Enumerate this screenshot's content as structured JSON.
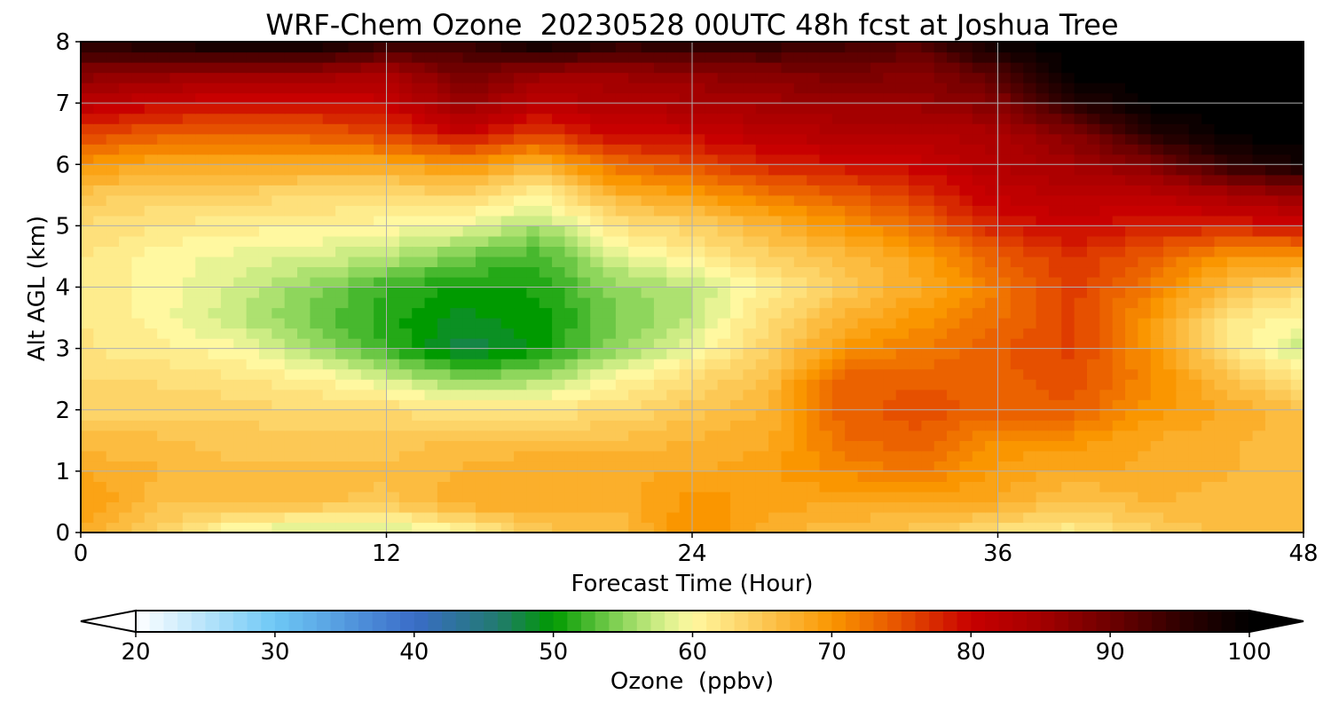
{
  "chart_data": {
    "type": "heatmap",
    "title": "WRF-Chem Ozone  20230528 00UTC 48h fcst at Joshua Tree",
    "xlabel": "Forecast Time (Hour)",
    "ylabel": "Alt AGL (km)",
    "xlim": [
      0,
      48
    ],
    "ylim": [
      0,
      8
    ],
    "x_ticks": [
      0,
      12,
      24,
      36,
      48
    ],
    "y_ticks": [
      0,
      1,
      2,
      3,
      4,
      5,
      6,
      7,
      8
    ],
    "grid": true,
    "colorbar": {
      "label": "Ozone  (ppbv)",
      "range": [
        20,
        100
      ],
      "ticks": [
        20,
        30,
        40,
        50,
        60,
        70,
        80,
        90,
        100
      ],
      "extend": "both",
      "orientation": "horizontal",
      "placement": "bottom",
      "colormap_stops": [
        {
          "value": 20,
          "color": "#ffffff"
        },
        {
          "value": 30,
          "color": "#6ec8f5"
        },
        {
          "value": 40,
          "color": "#3a6cc8"
        },
        {
          "value": 46,
          "color": "#227a70"
        },
        {
          "value": 50,
          "color": "#009a00"
        },
        {
          "value": 55,
          "color": "#8ed65c"
        },
        {
          "value": 58,
          "color": "#d8f08c"
        },
        {
          "value": 60,
          "color": "#fff8a0"
        },
        {
          "value": 65,
          "color": "#fcc855"
        },
        {
          "value": 70,
          "color": "#fa9600"
        },
        {
          "value": 75,
          "color": "#e65000"
        },
        {
          "value": 80,
          "color": "#c80000"
        },
        {
          "value": 85,
          "color": "#a40000"
        },
        {
          "value": 90,
          "color": "#6e0000"
        },
        {
          "value": 95,
          "color": "#300000"
        },
        {
          "value": 100,
          "color": "#000000"
        }
      ]
    },
    "x": [
      0,
      3,
      6,
      9,
      12,
      15,
      18,
      21,
      24,
      27,
      30,
      33,
      36,
      39,
      42,
      45,
      48
    ],
    "y": [
      0,
      0.5,
      1,
      1.5,
      2,
      2.5,
      3,
      3.5,
      4,
      4.5,
      5,
      5.5,
      6,
      6.5,
      7,
      7.5,
      8
    ],
    "z": [
      [
        68,
        64,
        59,
        57,
        57,
        60,
        65,
        66,
        71,
        67,
        66,
        65,
        62,
        61,
        64,
        66,
        66
      ],
      [
        70,
        66,
        66,
        66,
        65,
        68,
        68,
        67,
        70,
        69,
        68,
        68,
        68,
        65,
        67,
        66,
        66
      ],
      [
        68,
        67,
        66,
        66,
        66,
        67,
        68,
        68,
        68,
        69,
        71,
        72,
        69,
        68,
        68,
        67,
        66
      ],
      [
        66,
        66,
        65,
        65,
        65,
        66,
        66,
        66,
        67,
        68,
        73,
        74,
        70,
        70,
        68,
        67,
        66
      ],
      [
        64,
        64,
        64,
        63,
        63,
        62,
        62,
        63,
        65,
        67,
        74,
        75,
        74,
        74,
        70,
        68,
        66
      ],
      [
        63,
        63,
        62,
        61,
        58,
        55,
        56,
        60,
        63,
        66,
        74,
        74,
        74,
        75,
        71,
        66,
        62
      ],
      [
        62,
        61,
        60,
        56,
        52,
        47,
        50,
        55,
        59,
        64,
        70,
        72,
        74,
        76,
        70,
        62,
        57
      ],
      [
        62,
        60,
        57,
        54,
        51,
        49,
        50,
        54,
        57,
        63,
        67,
        70,
        73,
        76,
        70,
        62,
        60
      ],
      [
        62,
        60,
        58,
        55,
        52,
        50,
        51,
        55,
        57,
        61,
        65,
        68,
        72,
        76,
        72,
        66,
        63
      ],
      [
        62,
        60,
        59,
        58,
        57,
        54,
        52,
        58,
        61,
        64,
        66,
        69,
        74,
        77,
        74,
        70,
        70
      ],
      [
        63,
        62,
        61,
        61,
        60,
        59,
        56,
        62,
        64,
        67,
        70,
        73,
        78,
        80,
        78,
        78,
        79
      ],
      [
        65,
        64,
        64,
        63,
        63,
        64,
        60,
        67,
        69,
        72,
        74,
        77,
        81,
        82,
        82,
        84,
        86
      ],
      [
        70,
        68,
        68,
        68,
        68,
        70,
        67,
        73,
        75,
        78,
        79,
        80,
        83,
        85,
        88,
        95,
        98
      ],
      [
        76,
        74,
        74,
        74,
        76,
        80,
        76,
        80,
        80,
        82,
        83,
        83,
        84,
        88,
        96,
        100,
        100
      ],
      [
        82,
        80,
        79,
        79,
        80,
        86,
        82,
        83,
        84,
        85,
        86,
        86,
        88,
        96,
        100,
        100,
        100
      ],
      [
        88,
        87,
        86,
        86,
        84,
        90,
        86,
        86,
        87,
        88,
        89,
        88,
        92,
        100,
        100,
        100,
        100
      ],
      [
        96,
        98,
        100,
        100,
        96,
        94,
        100,
        96,
        96,
        96,
        94,
        92,
        100,
        100,
        100,
        100,
        100
      ]
    ]
  }
}
